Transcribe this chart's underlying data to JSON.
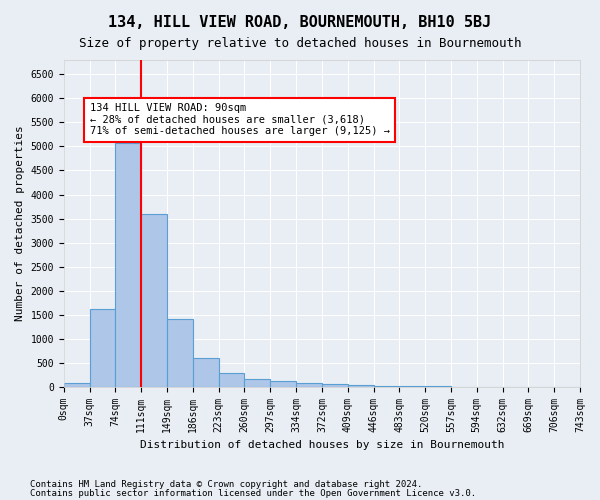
{
  "title": "134, HILL VIEW ROAD, BOURNEMOUTH, BH10 5BJ",
  "subtitle": "Size of property relative to detached houses in Bournemouth",
  "xlabel": "Distribution of detached houses by size in Bournemouth",
  "ylabel": "Number of detached properties",
  "footer_lines": [
    "Contains HM Land Registry data © Crown copyright and database right 2024.",
    "Contains public sector information licensed under the Open Government Licence v3.0."
  ],
  "bin_labels": [
    "0sqm",
    "37sqm",
    "74sqm",
    "111sqm",
    "149sqm",
    "186sqm",
    "223sqm",
    "260sqm",
    "297sqm",
    "334sqm",
    "372sqm",
    "409sqm",
    "446sqm",
    "483sqm",
    "520sqm",
    "557sqm",
    "594sqm",
    "632sqm",
    "669sqm",
    "706sqm",
    "743sqm"
  ],
  "bar_values": [
    70,
    1620,
    5080,
    3600,
    1400,
    590,
    295,
    155,
    110,
    85,
    55,
    25,
    15,
    8,
    5,
    3,
    2,
    2,
    1,
    1
  ],
  "bar_color": "#aec6e8",
  "bar_edge_color": "#5a9fd4",
  "property_label": "134 HILL VIEW ROAD: 90sqm",
  "annotation_line1": "← 28% of detached houses are smaller (3,618)",
  "annotation_line2": "71% of semi-detached houses are larger (9,125) →",
  "red_line_bin_index": 2,
  "ylim": [
    0,
    6800
  ],
  "yticks": [
    0,
    500,
    1000,
    1500,
    2000,
    2500,
    3000,
    3500,
    4000,
    4500,
    5000,
    5500,
    6000,
    6500
  ],
  "background_color": "#e8eef4",
  "plot_bg_color": "#e8eef4",
  "grid_color": "#ffffff",
  "title_fontsize": 11,
  "subtitle_fontsize": 9,
  "axis_label_fontsize": 8,
  "tick_fontsize": 7,
  "annotation_fontsize": 7.5,
  "footer_fontsize": 6.5
}
